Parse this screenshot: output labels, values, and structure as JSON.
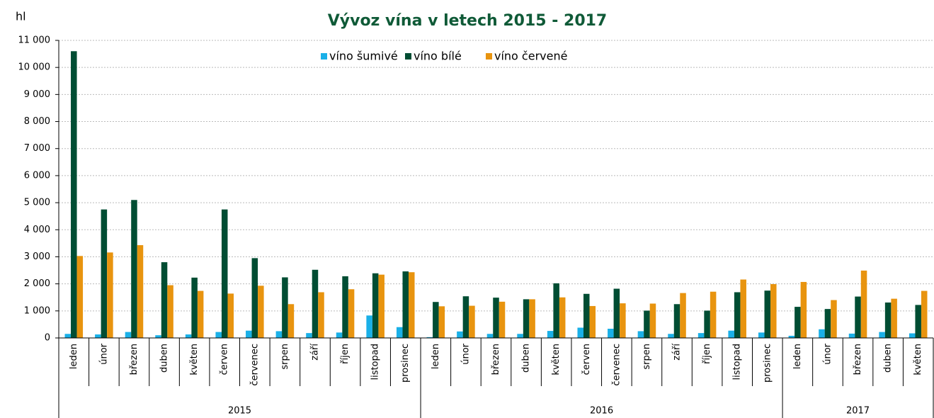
{
  "chart_data": {
    "type": "bar",
    "title": "Vývoz vína v letech 2015 - 2017",
    "y_label": "hl",
    "groups": [
      {
        "label": "2015",
        "categories": [
          "leden",
          "únor",
          "březen",
          "duben",
          "květen",
          "červen",
          "červenec",
          "srpen",
          "září",
          "říjen",
          "listopad",
          "prosinec"
        ]
      },
      {
        "label": "2016",
        "categories": [
          "leden",
          "únor",
          "březen",
          "duben",
          "květen",
          "červen",
          "červenec",
          "srpen",
          "září",
          "říjen",
          "listopad",
          "prosinec"
        ]
      },
      {
        "label": "2017",
        "categories": [
          "leden",
          "únor",
          "březen",
          "duben",
          "květen"
        ]
      }
    ],
    "series": [
      {
        "name": "víno šumivé",
        "color": "#1ab0e8",
        "values": [
          150,
          130,
          220,
          100,
          130,
          220,
          270,
          250,
          180,
          200,
          830,
          400,
          30,
          240,
          150,
          150,
          260,
          380,
          340,
          250,
          150,
          180,
          270,
          200,
          80,
          320,
          160,
          220,
          170
        ]
      },
      {
        "name": "víno bílé",
        "color": "#004d33",
        "values": [
          10600,
          4750,
          5100,
          2800,
          2230,
          4750,
          2950,
          2240,
          2520,
          2280,
          2390,
          2460,
          1330,
          1540,
          1490,
          1430,
          2020,
          1630,
          1820,
          1010,
          1250,
          1010,
          1690,
          1750,
          1150,
          1070,
          1530,
          1310,
          1220
        ]
      },
      {
        "name": "víno červené",
        "color": "#e8940f",
        "values": [
          3030,
          3160,
          3430,
          1950,
          1740,
          1640,
          1930,
          1250,
          1690,
          1800,
          2340,
          2430,
          1170,
          1190,
          1340,
          1430,
          1500,
          1180,
          1280,
          1270,
          1660,
          1710,
          2160,
          1990,
          2070,
          1400,
          2490,
          1450,
          1740
        ]
      }
    ],
    "ylim": [
      0,
      11000
    ],
    "yticks": [
      0,
      {
        "value": 1000,
        "label": "1 000"
      },
      {
        "value": 2000,
        "label": "2 000"
      },
      {
        "value": 3000,
        "label": "3 000"
      },
      {
        "value": 4000,
        "label": "4 000"
      },
      {
        "value": 5000,
        "label": "5 000"
      },
      {
        "value": 6000,
        "label": "6 000"
      },
      {
        "value": 7000,
        "label": "7 000"
      },
      {
        "value": 8000,
        "label": "8 000"
      },
      {
        "value": 9000,
        "label": "9 000"
      },
      {
        "value": 10000,
        "label": "10 000"
      },
      {
        "value": 11000,
        "label": "11 000"
      }
    ],
    "grid": true,
    "legend": "top"
  }
}
